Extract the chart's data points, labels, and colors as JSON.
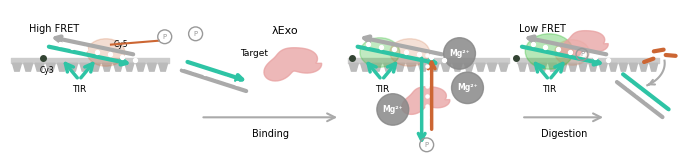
{
  "bg_color": "#ffffff",
  "teal": "#2ec4a5",
  "gray_dna": "#aaaaaa",
  "orange_probe": "#cc6633",
  "pink_enzyme": "#e8a0a0",
  "green_cy3": "#33bb33",
  "dark_dot": "#555555",
  "arrow_gray": "#aaaaaa",
  "mg_gray": "#888888",
  "surface_color": "#cccccc",
  "teeth_color": "#bbbbbb",
  "tir_color": "#2ec4a5",
  "texts": {
    "high_fret": "High FRET",
    "low_fret": "Low FRET",
    "cy5": "Cy5",
    "cy3": "Cy3",
    "tir": "TIR",
    "lambda_exo": "λExo",
    "target": "Target",
    "binding": "Binding",
    "digestion": "Digestion",
    "p": "P",
    "mg": "Mg²⁺"
  }
}
